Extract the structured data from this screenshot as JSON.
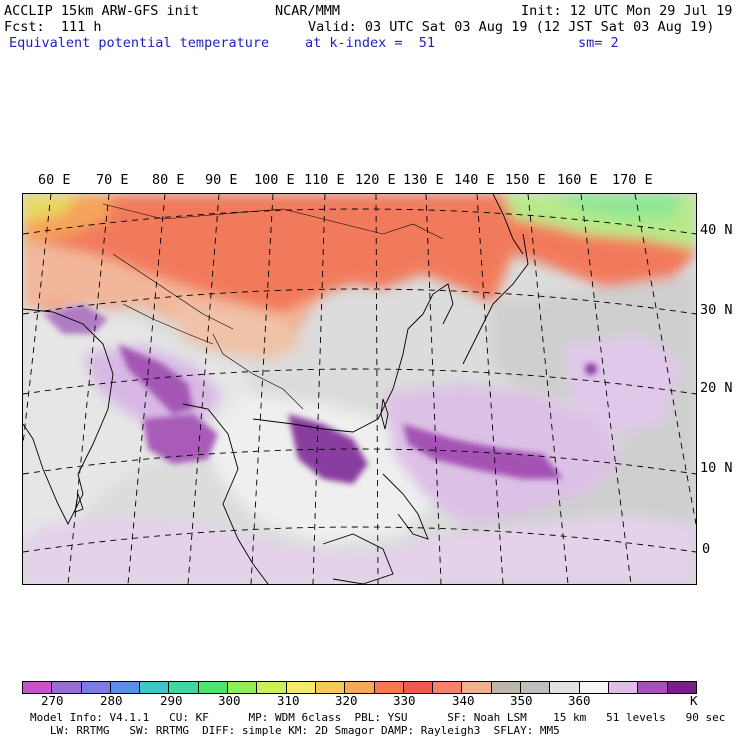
{
  "header": {
    "model": "ACCLIP 15km ARW-GFS init",
    "org": "NCAR/MMM",
    "init": "Init: 12 UTC Mon 29 Jul 19",
    "fcst": "Fcst:  111 h",
    "valid": "Valid: 03 UTC Sat 03 Aug 19 (12 JST Sat 03 Aug 19)",
    "field": "Equivalent potential temperature",
    "level": "at k-index =  51",
    "smooth": "sm= 2"
  },
  "map": {
    "lon_labels": [
      "60 E",
      "70 E",
      "80 E",
      "90 E",
      "100 E",
      "110 E",
      "120 E",
      "130 E",
      "140 E",
      "150 E",
      "160 E",
      "170 E"
    ],
    "lat_labels": [
      "40 N",
      "30 N",
      "20 N",
      "10 N",
      "0"
    ]
  },
  "colorbar": {
    "colors": [
      "#c853c8",
      "#9b6bd6",
      "#7c7ce6",
      "#5a8fea",
      "#3fc7c7",
      "#3fd6a0",
      "#4ee46b",
      "#8fee5a",
      "#c8f05a",
      "#f5ea6b",
      "#f8c85a",
      "#f8a85a",
      "#f8784f",
      "#f05a4a",
      "#f5826b",
      "#f2b08f",
      "#bdb5a8",
      "#bfbfbf",
      "#e2e2e2",
      "#f5f5f5",
      "#dfbfe6",
      "#a84fb8",
      "#7a1f8a"
    ],
    "labels": [
      "270",
      "280",
      "290",
      "300",
      "310",
      "320",
      "330",
      "340",
      "350",
      "360",
      "K"
    ]
  },
  "footer": {
    "line1": "Model Info: V4.1.1   CU: KF      MP: WDM 6class  PBL: YSU      SF: Noah LSM    15 km   51 levels   90 sec",
    "line2": "   LW: RRTMG   SW: RRTMG  DIFF: simple KM: 2D Smagor DAMP: Rayleigh3  SFLAY: MM5"
  }
}
